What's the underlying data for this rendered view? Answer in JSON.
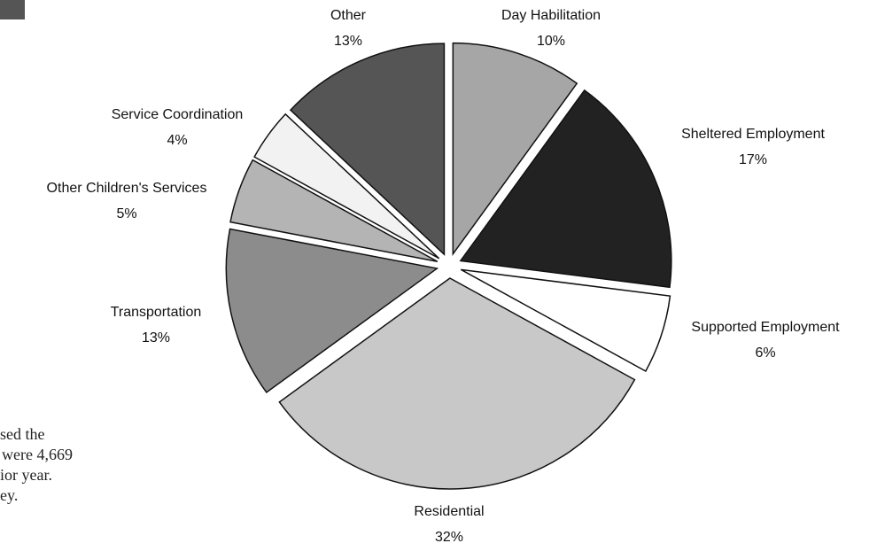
{
  "chart_data": {
    "type": "pie",
    "categories": [
      "Day Habilitation",
      "Sheltered Employment",
      "Supported Employment",
      "Residential",
      "Transportation",
      "Other Children's Services",
      "Service Coordination",
      "Other"
    ],
    "values": [
      10,
      17,
      6,
      32,
      13,
      5,
      4,
      13
    ],
    "value_labels": [
      "10%",
      "17%",
      "6%",
      "32%",
      "13%",
      "5%",
      "4%",
      "13%"
    ],
    "colors": [
      "#a6a6a6",
      "#222222",
      "#ffffff",
      "#c8c8c8",
      "#8c8c8c",
      "#b4b4b4",
      "#f2f2f2",
      "#555555"
    ]
  },
  "text_fragments": [
    "sed the",
    "were 4,669",
    "ior year.",
    "ey."
  ]
}
